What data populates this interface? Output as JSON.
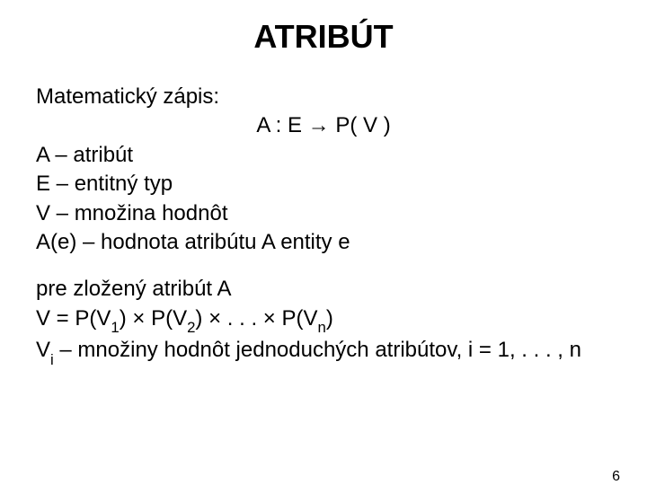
{
  "title": "ATRIBÚT",
  "section1_label": "Matematický zápis:",
  "formula": "A :   E   →   P( V )",
  "def_A": "A – atribút",
  "def_E": "E – entitný typ",
  "def_V": "V – množina hodnôt",
  "def_Ae": "A(e) – hodnota atribútu A entity e",
  "compound_label": "pre zložený atribút A",
  "comp_prefix": "V =  P(V",
  "comp_s1": "1",
  "comp_mid1": ")  ×   P(V",
  "comp_s2": "2",
  "comp_mid2": ") ×   .  .  .   ×   P(V",
  "comp_sn": "n",
  "comp_suffix": ")",
  "vi_prefix": "V",
  "vi_sub": "i",
  "vi_rest": " – množiny hodnôt jednoduchých atribútov, i = 1, . . . , n",
  "page_number": "6",
  "colors": {
    "background": "#ffffff",
    "text": "#000000"
  },
  "typography": {
    "title_fontsize": 36,
    "body_fontsize": 24,
    "pagenum_fontsize": 16,
    "font_family": "Arial"
  }
}
